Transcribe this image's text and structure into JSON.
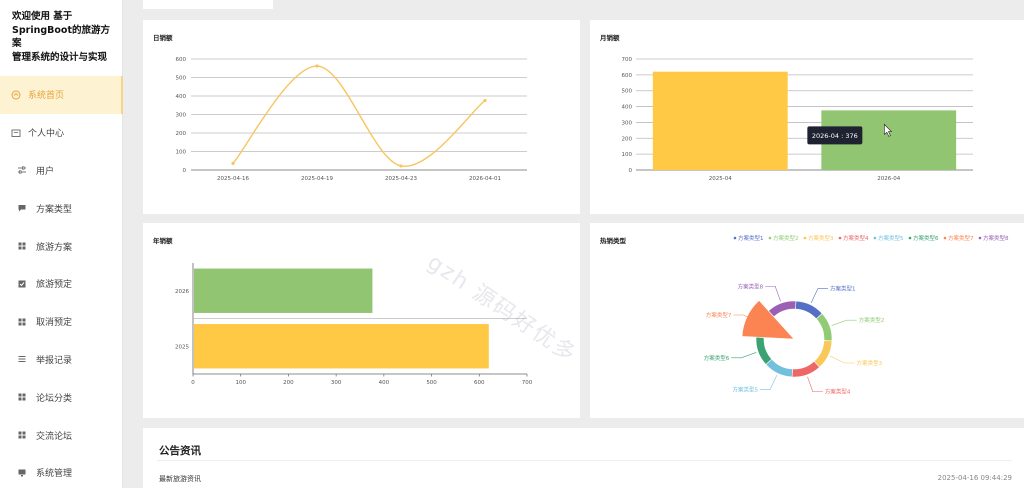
{
  "sidebar": {
    "brand_lines": [
      "欢迎使用 基于",
      "SpringBoot的旅游方案",
      "管理系统的设计与实现"
    ],
    "items": [
      {
        "label": "系统首页",
        "icon": "home-icon"
      },
      {
        "label": "个人中心",
        "icon": "user-card-icon"
      },
      {
        "label": "用户",
        "icon": "sliders-icon"
      },
      {
        "label": "方案类型",
        "icon": "chat-icon"
      },
      {
        "label": "旅游方案",
        "icon": "grid-icon"
      },
      {
        "label": "旅游预定",
        "icon": "checkbox-icon"
      },
      {
        "label": "取消预定",
        "icon": "grid-icon"
      },
      {
        "label": "举报记录",
        "icon": "list-icon"
      },
      {
        "label": "论坛分类",
        "icon": "grid-icon"
      },
      {
        "label": "交流论坛",
        "icon": "grid-icon"
      },
      {
        "label": "系统管理",
        "icon": "monitor-icon"
      }
    ]
  },
  "panels": {
    "daily_title": "日销额",
    "monthly_title": "月销额",
    "yearly_title": "年销额",
    "hot_title": "热销类型"
  },
  "chart_data": [
    {
      "type": "line",
      "title": "日销额",
      "categories": [
        "2025-04-16",
        "2025-04-19",
        "2025-04-23",
        "2026-04-01"
      ],
      "values": [
        36,
        562,
        22,
        376
      ],
      "ylim": [
        0,
        600
      ],
      "yticks": [
        0,
        100,
        200,
        300,
        400,
        500,
        600
      ],
      "color": "#f7c55f",
      "smooth": true
    },
    {
      "type": "bar",
      "title": "月销额",
      "categories": [
        "2025-04",
        "2026-04"
      ],
      "values": [
        620,
        376
      ],
      "colors": [
        "#ffc845",
        "#91c572"
      ],
      "ylim": [
        0,
        700
      ],
      "yticks": [
        0,
        100,
        200,
        300,
        400,
        500,
        600,
        700
      ],
      "tooltip": "2026-04 : 376"
    },
    {
      "type": "bar",
      "orientation": "horizontal",
      "title": "年销额",
      "categories": [
        "2026",
        "2025"
      ],
      "values": [
        376,
        620
      ],
      "colors": [
        "#91c572",
        "#ffc845"
      ],
      "xlim": [
        0,
        700
      ],
      "xticks": [
        0,
        100,
        200,
        300,
        400,
        500,
        600,
        700
      ]
    },
    {
      "type": "pie",
      "title": "热销类型",
      "legend": [
        "方案类型1",
        "方案类型2",
        "方案类型3",
        "方案类型4",
        "方案类型5",
        "方案类型6",
        "方案类型7",
        "方案类型8"
      ],
      "colors": [
        "#5470c6",
        "#91cc75",
        "#fac858",
        "#ee6666",
        "#73c0de",
        "#3ba272",
        "#fc8452",
        "#9a60b4"
      ],
      "values": [
        1,
        1,
        1,
        1,
        1,
        1,
        1,
        1
      ],
      "highlighted": "方案类型7"
    }
  ],
  "notice": {
    "title": "公告资讯",
    "item_title": "最新旅游资讯",
    "item_time": "2025-04-16 09:44:29"
  },
  "watermark": "gzh 源码好优多"
}
